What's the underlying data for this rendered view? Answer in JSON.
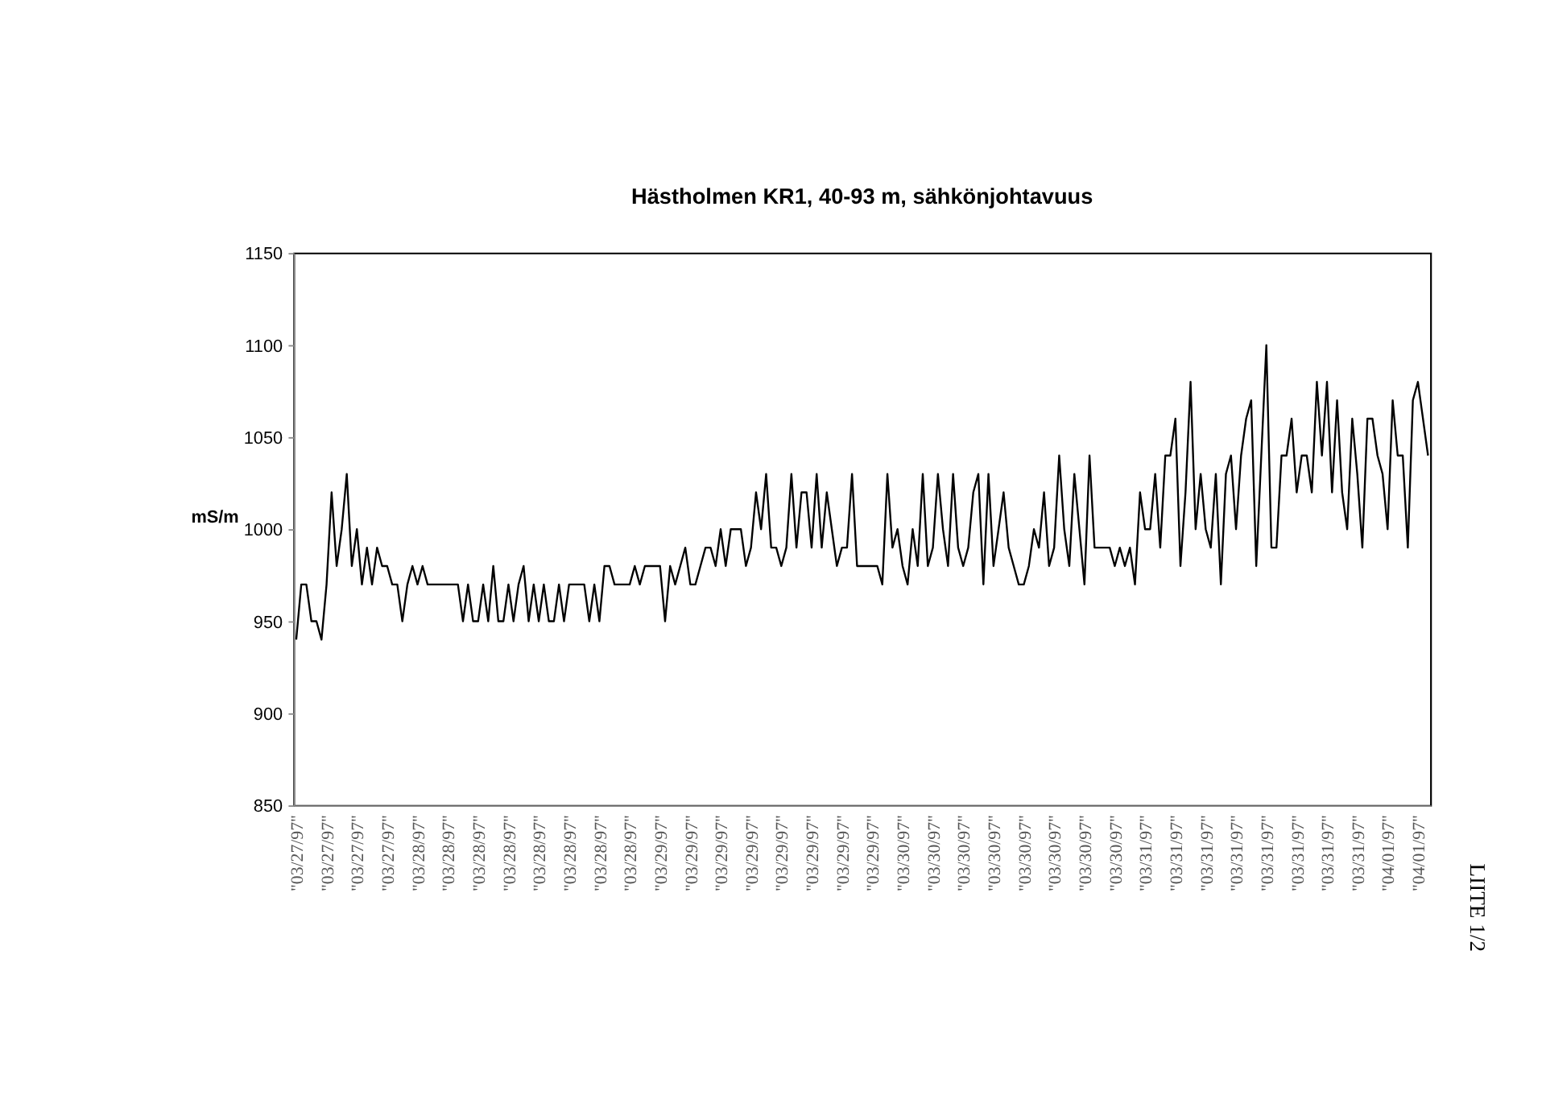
{
  "chart_data": {
    "type": "line",
    "title": "Hästholmen KR1, 40-93 m, sähkönjohtavuus",
    "ylabel": "mS/m",
    "categories": [
      "\"03/27/97\"",
      null,
      null,
      null,
      null,
      null,
      "\"03/27/97\"",
      null,
      null,
      null,
      null,
      null,
      "\"03/27/97\"",
      null,
      null,
      null,
      null,
      null,
      "\"03/27/97\"",
      null,
      null,
      null,
      null,
      null,
      "\"03/28/97\"",
      null,
      null,
      null,
      null,
      null,
      "\"03/28/97\"",
      null,
      null,
      null,
      null,
      null,
      "\"03/28/97\"",
      null,
      null,
      null,
      null,
      null,
      "\"03/28/97\"",
      null,
      null,
      null,
      null,
      null,
      "\"03/28/97\"",
      null,
      null,
      null,
      null,
      null,
      "\"03/28/97\"",
      null,
      null,
      null,
      null,
      null,
      "\"03/28/97\"",
      null,
      null,
      null,
      null,
      null,
      "\"03/28/97\"",
      null,
      null,
      null,
      null,
      null,
      "\"03/29/97\"",
      null,
      null,
      null,
      null,
      null,
      "\"03/29/97\"",
      null,
      null,
      null,
      null,
      null,
      "\"03/29/97\"",
      null,
      null,
      null,
      null,
      null,
      "\"03/29/97\"",
      null,
      null,
      null,
      null,
      null,
      "\"03/29/97\"",
      null,
      null,
      null,
      null,
      null,
      "\"03/29/97\"",
      null,
      null,
      null,
      null,
      null,
      "\"03/29/97\"",
      null,
      null,
      null,
      null,
      null,
      "\"03/29/97\"",
      null,
      null,
      null,
      null,
      null,
      "\"03/30/97\"",
      null,
      null,
      null,
      null,
      null,
      "\"03/30/97\"",
      null,
      null,
      null,
      null,
      null,
      "\"03/30/97\"",
      null,
      null,
      null,
      null,
      null,
      "\"03/30/97\"",
      null,
      null,
      null,
      null,
      null,
      "\"03/30/97\"",
      null,
      null,
      null,
      null,
      null,
      "\"03/30/97\"",
      null,
      null,
      null,
      null,
      null,
      "\"03/30/97\"",
      null,
      null,
      null,
      null,
      null,
      "\"03/30/97\"",
      null,
      null,
      null,
      null,
      null,
      "\"03/31/97\"",
      null,
      null,
      null,
      null,
      null,
      "\"03/31/97\"",
      null,
      null,
      null,
      null,
      null,
      "\"03/31/97\"",
      null,
      null,
      null,
      null,
      null,
      "\"03/31/97\"",
      null,
      null,
      null,
      null,
      null,
      "\"03/31/97\"",
      null,
      null,
      null,
      null,
      null,
      "\"03/31/97\"",
      null,
      null,
      null,
      null,
      null,
      "\"03/31/97\"",
      null,
      null,
      null,
      null,
      null,
      "\"03/31/97\"",
      null,
      null,
      null,
      null,
      null,
      "\"04/01/97\"",
      null,
      null,
      null,
      null,
      null,
      "\"04/01/97\"",
      null,
      null
    ],
    "series": [
      {
        "color": "#000000",
        "values": [
          940,
          970,
          970,
          950,
          950,
          940,
          970,
          1020,
          980,
          1000,
          1030,
          980,
          1000,
          970,
          990,
          970,
          990,
          980,
          980,
          970,
          970,
          950,
          970,
          980,
          970,
          980,
          970,
          970,
          970,
          970,
          970,
          970,
          970,
          950,
          970,
          950,
          950,
          970,
          950,
          980,
          950,
          950,
          970,
          950,
          970,
          980,
          950,
          970,
          950,
          970,
          950,
          950,
          970,
          950,
          970,
          970,
          970,
          970,
          950,
          970,
          950,
          980,
          980,
          970,
          970,
          970,
          970,
          980,
          970,
          980,
          980,
          980,
          980,
          950,
          980,
          970,
          980,
          990,
          970,
          970,
          980,
          990,
          990,
          980,
          1000,
          980,
          1000,
          1000,
          1000,
          980,
          990,
          1020,
          1000,
          1030,
          990,
          990,
          980,
          990,
          1030,
          990,
          1020,
          1020,
          990,
          1030,
          990,
          1020,
          1000,
          980,
          990,
          990,
          1030,
          980,
          980,
          980,
          980,
          980,
          970,
          1030,
          990,
          1000,
          980,
          970,
          1000,
          980,
          1030,
          980,
          990,
          1030,
          1000,
          980,
          1030,
          990,
          980,
          990,
          1020,
          1030,
          970,
          1030,
          980,
          1000,
          1020,
          990,
          980,
          970,
          970,
          980,
          1000,
          990,
          1020,
          980,
          990,
          1040,
          1000,
          980,
          1030,
          1000,
          970,
          1040,
          990,
          990,
          990,
          990,
          980,
          990,
          980,
          990,
          970,
          1020,
          1000,
          1000,
          1030,
          990,
          1040,
          1040,
          1060,
          980,
          1020,
          1080,
          1000,
          1030,
          1000,
          990,
          1030,
          970,
          1030,
          1040,
          1000,
          1040,
          1060,
          1070,
          980,
          1040,
          1100,
          990,
          990,
          1040,
          1040,
          1060,
          1020,
          1040,
          1040,
          1020,
          1080,
          1040,
          1080,
          1020,
          1070,
          1020,
          1000,
          1060,
          1030,
          990,
          1060,
          1060,
          1040,
          1030,
          1000,
          1070,
          1040,
          1040,
          990,
          1070,
          1080,
          1060,
          1040
        ]
      }
    ],
    "ylim": [
      850,
      1150
    ],
    "yticks": [
      850,
      900,
      950,
      1000,
      1050,
      1100,
      1150
    ],
    "grid": false,
    "marker": "none",
    "line_style": "solid",
    "annotations": [
      "LIITE 1/2"
    ]
  }
}
